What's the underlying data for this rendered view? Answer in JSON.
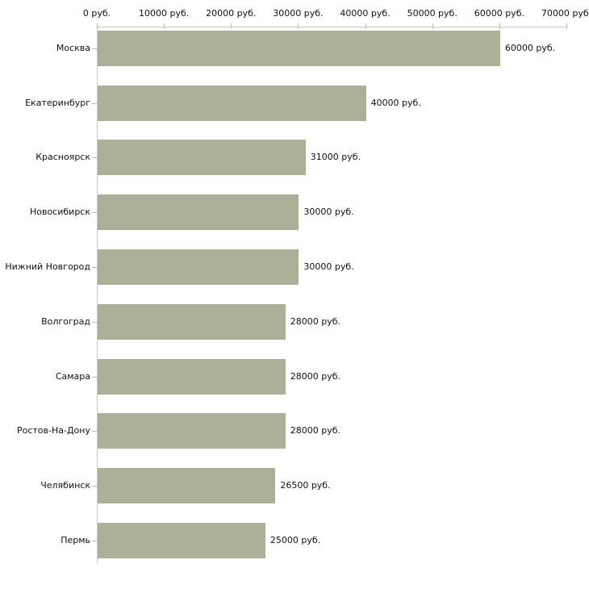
{
  "chart_data": {
    "type": "bar",
    "orientation": "horizontal",
    "unit": "руб.",
    "categories": [
      "Москва",
      "Екатеринбург",
      "Красноярск",
      "Новосибирск",
      "Нижний Новгород",
      "Волгоград",
      "Самара",
      "Ростов-На-Дону",
      "Челябинск",
      "Пермь"
    ],
    "values": [
      60000,
      40000,
      31000,
      30000,
      30000,
      28000,
      28000,
      28000,
      26500,
      25000
    ],
    "value_labels": [
      "60000 руб.",
      "40000 руб.",
      "31000 руб.",
      "30000 руб.",
      "30000 руб.",
      "28000 руб.",
      "28000 руб.",
      "28000 руб.",
      "26500 руб.",
      "25000 руб."
    ],
    "x_axis": {
      "position": "top",
      "min": 0,
      "max": 70000,
      "tick_step": 10000,
      "ticks": [
        0,
        10000,
        20000,
        30000,
        40000,
        50000,
        60000,
        70000
      ],
      "tick_labels": [
        "0 руб.",
        "10000 руб.",
        "20000 руб.",
        "30000 руб.",
        "40000 руб.",
        "50000 руб.",
        "60000 руб.",
        "70000 руб."
      ]
    },
    "grid": false,
    "legend": false,
    "colors": {
      "bar": "#abb199",
      "axis_line": "#c6c6c6",
      "tick": "#c3be95",
      "text": "#111111",
      "background": "#ffffff"
    }
  }
}
